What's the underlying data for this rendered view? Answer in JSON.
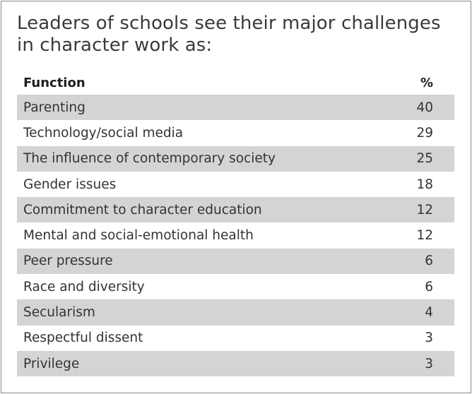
{
  "title_line1": "Leaders of schools see their major challenges",
  "title_line2": "in character work as:",
  "table": {
    "headers": {
      "function": "Function",
      "percent": "%"
    },
    "rows": [
      {
        "function": "Parenting",
        "percent": "40"
      },
      {
        "function": "Technology/social media",
        "percent": "29"
      },
      {
        "function": "The influence of contemporary society",
        "percent": "25"
      },
      {
        "function": "Gender issues",
        "percent": "18"
      },
      {
        "function": "Commitment to character education",
        "percent": "12"
      },
      {
        "function": "Mental and social-emotional health",
        "percent": "12"
      },
      {
        "function": "Peer pressure",
        "percent": "6"
      },
      {
        "function": "Race and diversity",
        "percent": "6"
      },
      {
        "function": "Secularism",
        "percent": "4"
      },
      {
        "function": "Respectful dissent",
        "percent": "3"
      },
      {
        "function": "Privilege",
        "percent": "3"
      }
    ]
  },
  "colors": {
    "shade": "#d4d4d4",
    "border": "#8a8a8a",
    "text": "#333333"
  }
}
